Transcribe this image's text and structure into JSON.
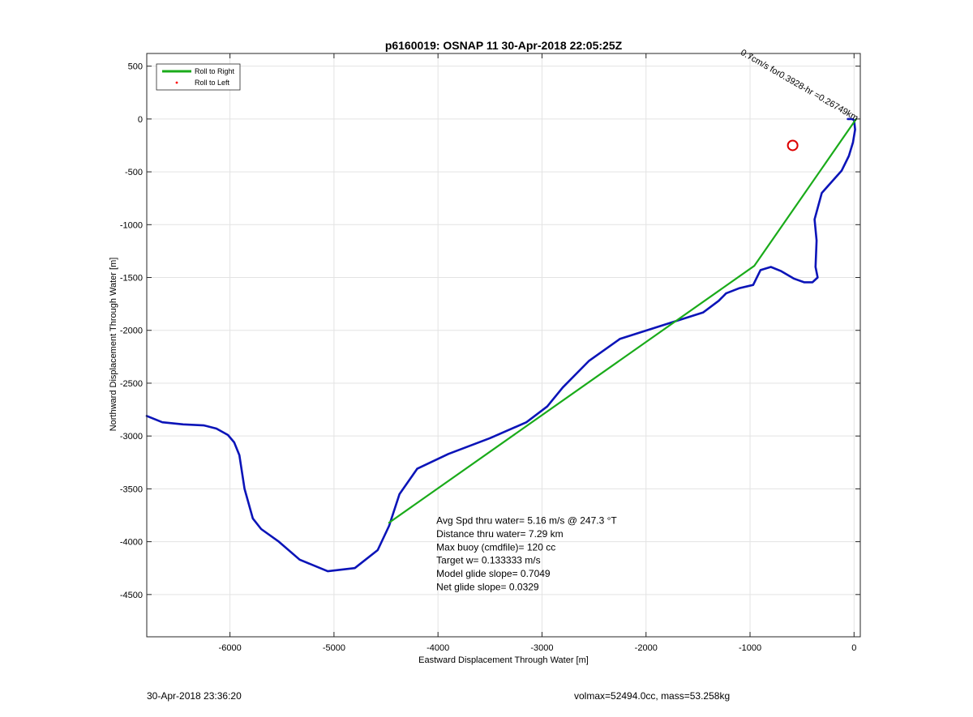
{
  "chart_data": {
    "type": "line",
    "title": "p6160019: OSNAP 11 30-Apr-2018 22:05:25Z",
    "xlabel": "Eastward Displacement Through Water [m]",
    "ylabel": "Northward Displacement Through Water [m]",
    "xlim": [
      -6800,
      60
    ],
    "ylim": [
      -4900,
      620
    ],
    "xticks": [
      -6000,
      -5000,
      -4000,
      -3000,
      -2000,
      -1000,
      0
    ],
    "yticks": [
      500,
      0,
      -500,
      -1000,
      -1500,
      -2000,
      -2500,
      -3000,
      -3500,
      -4000,
      -4500
    ],
    "grid": true,
    "legend_position": "top-left",
    "legend": [
      {
        "label": "Roll to Right",
        "color": "#1aab1a",
        "marker": "line"
      },
      {
        "label": "Roll to Left",
        "color": "#ff0000",
        "marker": "dot"
      }
    ],
    "series": [
      {
        "color": "#0b14b8",
        "x": [
          -6800,
          -6650,
          -6450,
          -6250,
          -6130,
          -6020,
          -5960,
          -5910,
          -5860,
          -5780,
          -5700,
          -5530,
          -5330,
          -5060,
          -4800,
          -4580,
          -4470,
          -4370,
          -4200,
          -3900,
          -3500,
          -3150,
          -2950,
          -2800,
          -2550,
          -2250,
          -1800,
          -1450,
          -1300,
          -1230,
          -1100,
          -970,
          -900,
          -800,
          -700,
          -580,
          -480,
          -400,
          -350,
          -370,
          -360,
          -380,
          -310,
          -220,
          -120,
          -50,
          -10,
          10,
          0,
          -20,
          -60
        ],
        "y": [
          -2810,
          -2870,
          -2890,
          -2900,
          -2930,
          -2990,
          -3060,
          -3180,
          -3500,
          -3780,
          -3880,
          -4000,
          -4170,
          -4280,
          -4250,
          -4080,
          -3850,
          -3550,
          -3310,
          -3170,
          -3020,
          -2870,
          -2720,
          -2540,
          -2290,
          -2080,
          -1940,
          -1830,
          -1720,
          -1650,
          -1600,
          -1570,
          -1430,
          -1400,
          -1440,
          -1510,
          -1545,
          -1545,
          -1500,
          -1400,
          -1150,
          -950,
          -700,
          -600,
          -490,
          -350,
          -220,
          -100,
          -10,
          0,
          0
        ]
      },
      {
        "name": "Roll to Right",
        "color": "#1aab1a",
        "x": [
          -4470,
          -960,
          20
        ],
        "y": [
          -3820,
          -1390,
          0
        ]
      }
    ],
    "annotations": {
      "stats": [
        "Avg Spd thru water=  5.16 m/s @ 247.3 °T",
        "Distance thru water=  7.29 km",
        "Max buoy (cmdfile)= 120 cc",
        "Target w= 0.133333 m/s",
        "Model glide slope= 0.7049",
        "Net glide slope= 0.0329"
      ],
      "rotated_text": "0.7cm/s for0.3928-hr =0.26749km",
      "rotated_text_angle": 30,
      "marker_circle": {
        "x": -590,
        "y": -250,
        "color": "#dd0000"
      }
    }
  },
  "footer": {
    "left": "30-Apr-2018 23:36:20",
    "right": "volmax=52494.0cc, mass=53.258kg"
  }
}
